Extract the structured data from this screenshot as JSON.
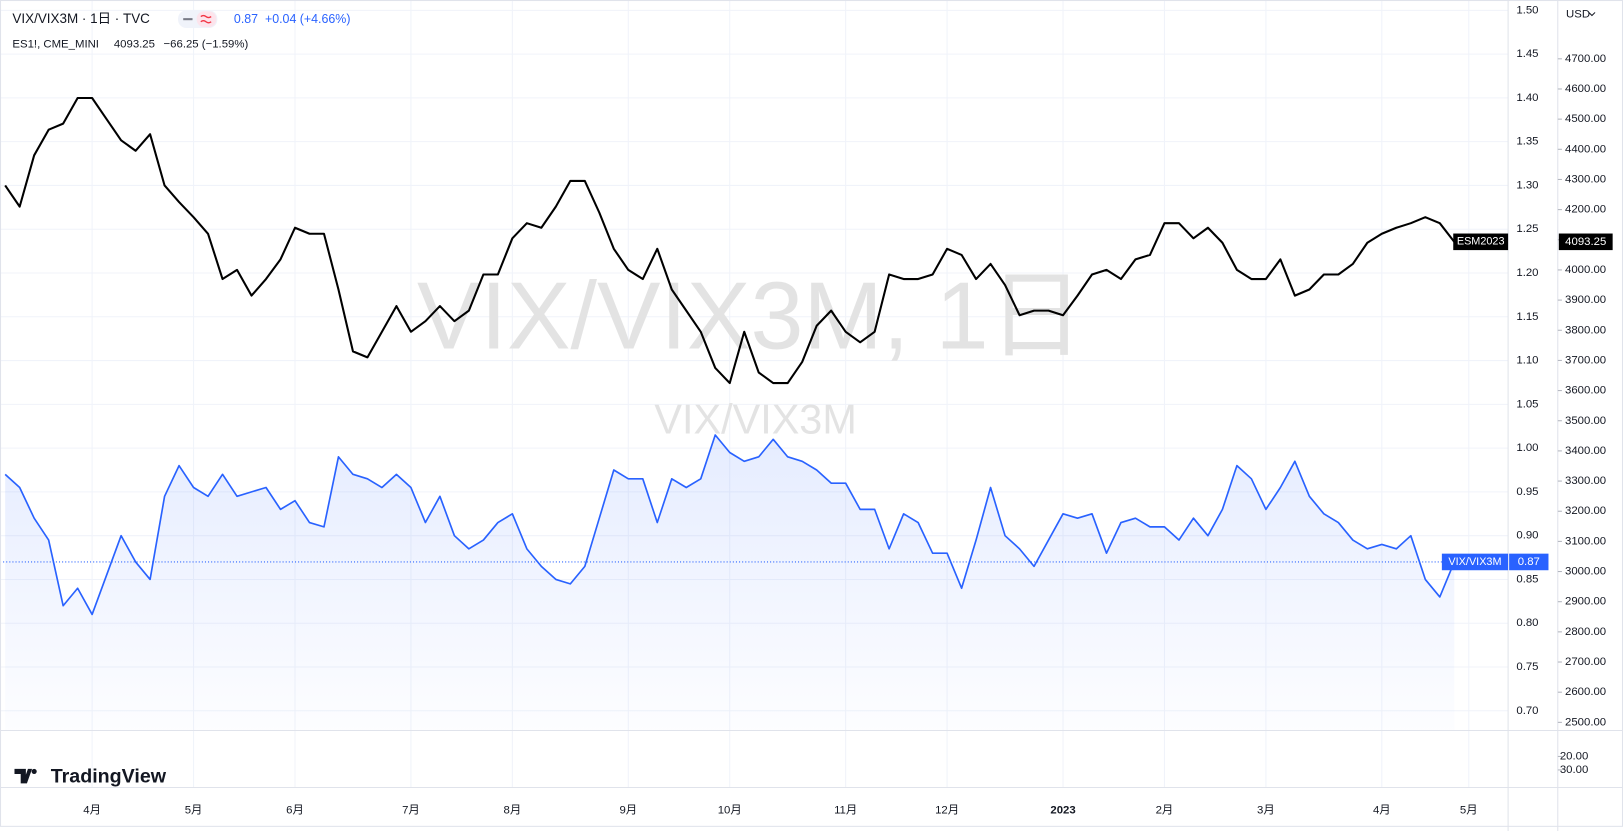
{
  "chart_data": {
    "type": "line",
    "header": "VIX/VIX3M · 1日 · TVC",
    "header_change": "+0.04 (+4.66%)",
    "secondary_header_change": "−66.25 (−1.59%)",
    "watermark": "VIX/VIX3M, 1日",
    "watermark_sub": "VIX/VIX3M",
    "currency": "USD",
    "brand": "TradingView",
    "grid": true,
    "categories": [
      null,
      null,
      null,
      null,
      null,
      null,
      "4月",
      null,
      null,
      null,
      null,
      null,
      null,
      "5月",
      null,
      null,
      null,
      null,
      null,
      null,
      "6月",
      null,
      null,
      null,
      null,
      null,
      null,
      null,
      "7月",
      null,
      null,
      null,
      null,
      null,
      null,
      "8月",
      null,
      null,
      null,
      null,
      null,
      null,
      null,
      "9月",
      null,
      null,
      null,
      null,
      null,
      null,
      "10月",
      null,
      null,
      null,
      null,
      null,
      null,
      null,
      "11月",
      null,
      null,
      null,
      null,
      null,
      null,
      "12月",
      null,
      null,
      null,
      null,
      null,
      null,
      null,
      "2023",
      null,
      null,
      null,
      null,
      null,
      null,
      "2月",
      null,
      null,
      null,
      null,
      null,
      null,
      "3月",
      null,
      null,
      null,
      null,
      null,
      null,
      null,
      "4月",
      null,
      null,
      null,
      null,
      null,
      "5月"
    ],
    "series": [
      {
        "name": "VIX/VIX3M",
        "color": "#2962ff",
        "area": true,
        "values": [
          0.97,
          0.955,
          0.92,
          0.895,
          0.82,
          0.84,
          0.81,
          0.855,
          0.9,
          0.87,
          0.85,
          0.945,
          0.98,
          0.955,
          0.945,
          0.97,
          0.945,
          0.95,
          0.955,
          0.93,
          0.94,
          0.915,
          0.91,
          0.99,
          0.97,
          0.965,
          0.955,
          0.97,
          0.955,
          0.915,
          0.945,
          0.9,
          0.885,
          0.895,
          0.915,
          0.925,
          0.885,
          0.865,
          0.85,
          0.845,
          0.865,
          0.92,
          0.975,
          0.965,
          0.965,
          0.915,
          0.965,
          0.955,
          0.965,
          1.015,
          0.995,
          0.985,
          0.99,
          1.01,
          0.99,
          0.985,
          0.975,
          0.96,
          0.96,
          0.93,
          0.93,
          0.885,
          0.925,
          0.915,
          0.88,
          0.88,
          0.84,
          0.895,
          0.955,
          0.9,
          0.885,
          0.865,
          0.895,
          0.925,
          0.92,
          0.925,
          0.88,
          0.915,
          0.92,
          0.91,
          0.91,
          0.895,
          0.92,
          0.9,
          0.93,
          0.98,
          0.965,
          0.93,
          0.955,
          0.985,
          0.945,
          0.925,
          0.915,
          0.895,
          0.885,
          0.89,
          0.885,
          0.9,
          0.85,
          0.83,
          0.87,
          null
        ]
      },
      {
        "name": "ES1!, CME_MINI",
        "tag": "ESM2023",
        "color": "#000000",
        "axis": "y2",
        "values": [
          4280,
          4210,
          4380,
          4465,
          4485,
          4570,
          4570,
          4500,
          4430,
          4395,
          4450,
          4280,
          4225,
          4175,
          4120,
          3970,
          4000,
          3915,
          3970,
          4035,
          4140,
          4120,
          4120,
          3935,
          3730,
          3710,
          3795,
          3880,
          3795,
          3830,
          3880,
          3830,
          3865,
          3985,
          3985,
          4105,
          4155,
          4140,
          4210,
          4295,
          4295,
          4190,
          4070,
          4000,
          3970,
          4070,
          3935,
          3865,
          3795,
          3675,
          3625,
          3795,
          3660,
          3625,
          3625,
          3695,
          3815,
          3865,
          3795,
          3760,
          3795,
          3985,
          3970,
          3970,
          3985,
          4070,
          4050,
          3970,
          4020,
          3950,
          3850,
          3865,
          3865,
          3850,
          3915,
          3985,
          4000,
          3970,
          4035,
          4050,
          4155,
          4155,
          4105,
          4140,
          4090,
          4000,
          3970,
          3970,
          4035,
          3915,
          3935,
          3985,
          3985,
          4020,
          4090,
          4120,
          4140,
          4155,
          4175,
          4155,
          4093.25,
          null
        ]
      }
    ],
    "ylim": [
      0.6775,
      1.5118
    ],
    "yticks": [
      {
        "value": 0.7,
        "label": "0.70"
      },
      0.75,
      {
        "value": 0.8,
        "label": "0.80"
      },
      0.85,
      {
        "value": 0.9,
        "label": "0.90"
      },
      0.95,
      {
        "value": 1,
        "label": "1.00"
      },
      1.05,
      {
        "value": 1.1,
        "label": "1.10"
      },
      1.15,
      {
        "value": 1.2,
        "label": "1.20"
      },
      1.25,
      {
        "value": 1.3,
        "label": "1.30"
      },
      1.35,
      {
        "value": 1.4,
        "label": "1.40"
      },
      1.45,
      {
        "value": 1.5,
        "label": "1.50"
      }
    ],
    "y2lim": [
      2473,
      4895
    ],
    "y2ticks": [
      {
        "value": 2500,
        "label": "2500.00"
      },
      {
        "value": 2600,
        "label": "2600.00"
      },
      {
        "value": 2700,
        "label": "2700.00"
      },
      {
        "value": 2800,
        "label": "2800.00"
      },
      {
        "value": 2900,
        "label": "2900.00"
      },
      {
        "value": 3000,
        "label": "3000.00"
      },
      {
        "value": 3100,
        "label": "3100.00"
      },
      {
        "value": 3200,
        "label": "3200.00"
      },
      {
        "value": 3300,
        "label": "3300.00"
      },
      {
        "value": 3400,
        "label": "3400.00"
      },
      {
        "value": 3500,
        "label": "3500.00"
      },
      {
        "value": 3600,
        "label": "3600.00"
      },
      {
        "value": 3700,
        "label": "3700.00"
      },
      {
        "value": 3800,
        "label": "3800.00"
      },
      {
        "value": 3900,
        "label": "3900.00"
      },
      {
        "value": 4000,
        "label": "4000.00"
      },
      {
        "value": 4100,
        "label": "4100.00"
      },
      {
        "value": 4200,
        "label": "4200.00"
      },
      {
        "value": 4300,
        "label": "4300.00"
      },
      {
        "value": 4400,
        "label": "4400.00"
      },
      {
        "value": 4500,
        "label": "4500.00"
      },
      {
        "value": 4600,
        "label": "4600.00"
      },
      {
        "value": 4700,
        "label": "4700.00"
      }
    ],
    "lower_pane": {
      "ylim": [
        0.77,
        35.4
      ],
      "inverted": true,
      "yticks": [
        {
          "value": 20,
          "label": "20.00"
        },
        {
          "value": 30,
          "label": "30.00"
        }
      ]
    }
  }
}
